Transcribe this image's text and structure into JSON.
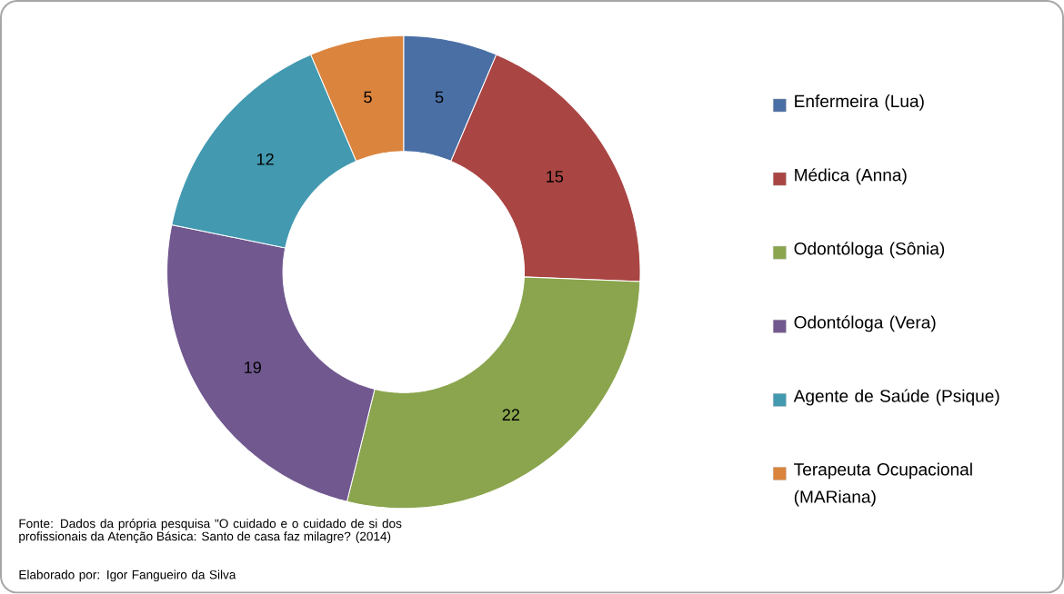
{
  "chart_data": {
    "type": "donut",
    "categories": [
      "Enfermeira (Lua)",
      "Médica (Anna)",
      "Odontóloga (Sônia)",
      "Odontóloga (Vera)",
      "Agente de Saúde (Psique)",
      "Terapeuta Ocupacional (MARiana)"
    ],
    "values": [
      5,
      15,
      22,
      19,
      12,
      5
    ],
    "colors": [
      "#4a6fa5",
      "#a94543",
      "#8aa54d",
      "#71588f",
      "#4299b0",
      "#db843d"
    ],
    "data_labels": true,
    "legend": "right",
    "annotations": [
      "Fonte: Dados da própria pesquisa \"O cuidado e o cuidado de si dos profissionais da Atenção Básica: Santo de casa faz milagre? (2014)",
      "Elaborado por: Igor Fangueiro da Silva"
    ]
  }
}
